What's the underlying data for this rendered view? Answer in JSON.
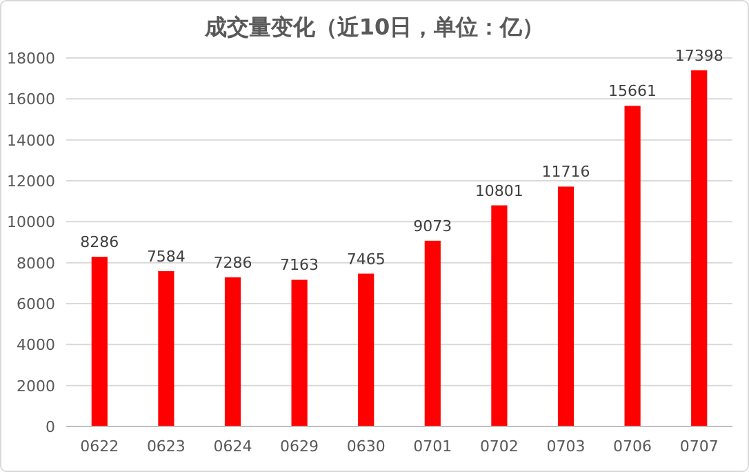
{
  "chart_data": {
    "type": "bar",
    "title": "成交量变化（近10日，单位：亿）",
    "categories": [
      "0622",
      "0623",
      "0624",
      "0629",
      "0630",
      "0701",
      "0702",
      "0703",
      "0706",
      "0707"
    ],
    "values": [
      8286,
      7584,
      7286,
      7163,
      7465,
      9073,
      10801,
      11716,
      15661,
      17398
    ],
    "color": "#ff0000",
    "ylim": [
      0,
      18000
    ],
    "yticks": [
      0,
      2000,
      4000,
      6000,
      8000,
      10000,
      12000,
      14000,
      16000,
      18000
    ],
    "grid": "y",
    "data_labels": true
  }
}
